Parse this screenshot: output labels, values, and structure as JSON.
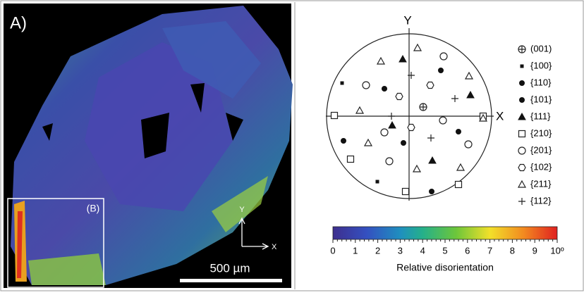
{
  "map": {
    "panel_label": "A)",
    "inset_label": "(B)",
    "axis_y": "Y",
    "axis_x": "X",
    "scale_bar": "500 µm"
  },
  "pole_figure": {
    "axis_y": "Y",
    "axis_x": "X",
    "legend": [
      "(001)",
      "{100}",
      "{110}",
      "{101}",
      "{111}",
      "{210}",
      "{201}",
      "{102}",
      "{211}",
      "{112}"
    ]
  },
  "colorbar": {
    "lim": [
      0,
      10
    ],
    "ticks": [
      0,
      1,
      2,
      3,
      4,
      5,
      6,
      7,
      8,
      9,
      {
        "value": 10,
        "label": "10º"
      }
    ],
    "label": "Relative disorientation"
  }
}
